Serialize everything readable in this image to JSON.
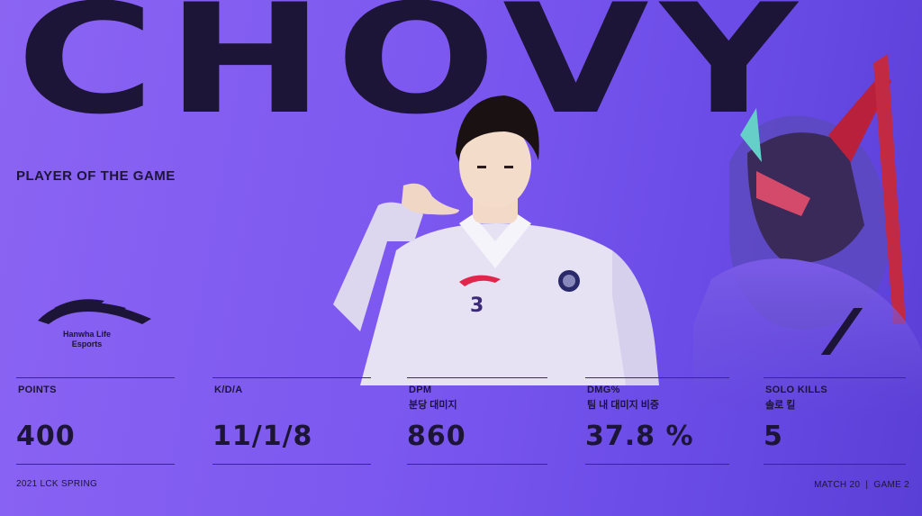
{
  "player_name": "CHOVY",
  "award": "PLAYER OF THE GAME",
  "team": {
    "line1": "Hanwha Life",
    "line2": "Esports"
  },
  "jersey_number": "3",
  "stats": [
    {
      "label": "POINTS",
      "sub": "",
      "value": "400"
    },
    {
      "label": "K/D/A",
      "sub": "",
      "value": "11/1/8"
    },
    {
      "label": "DPM",
      "sub": "분당 대미지",
      "value": "860"
    },
    {
      "label": "DMG%",
      "sub": "팀 내 대미지 비중",
      "value": "37.8 %"
    },
    {
      "label": "SOLO KILLS",
      "sub": "솔로 킬",
      "value": "5"
    }
  ],
  "footer": {
    "season": "2021 LCK SPRING",
    "match": "MATCH 20  |  GAME 2"
  },
  "colors": {
    "background": "#7c58f0",
    "text": "#1d1537",
    "accent_red": "#e0264a"
  }
}
